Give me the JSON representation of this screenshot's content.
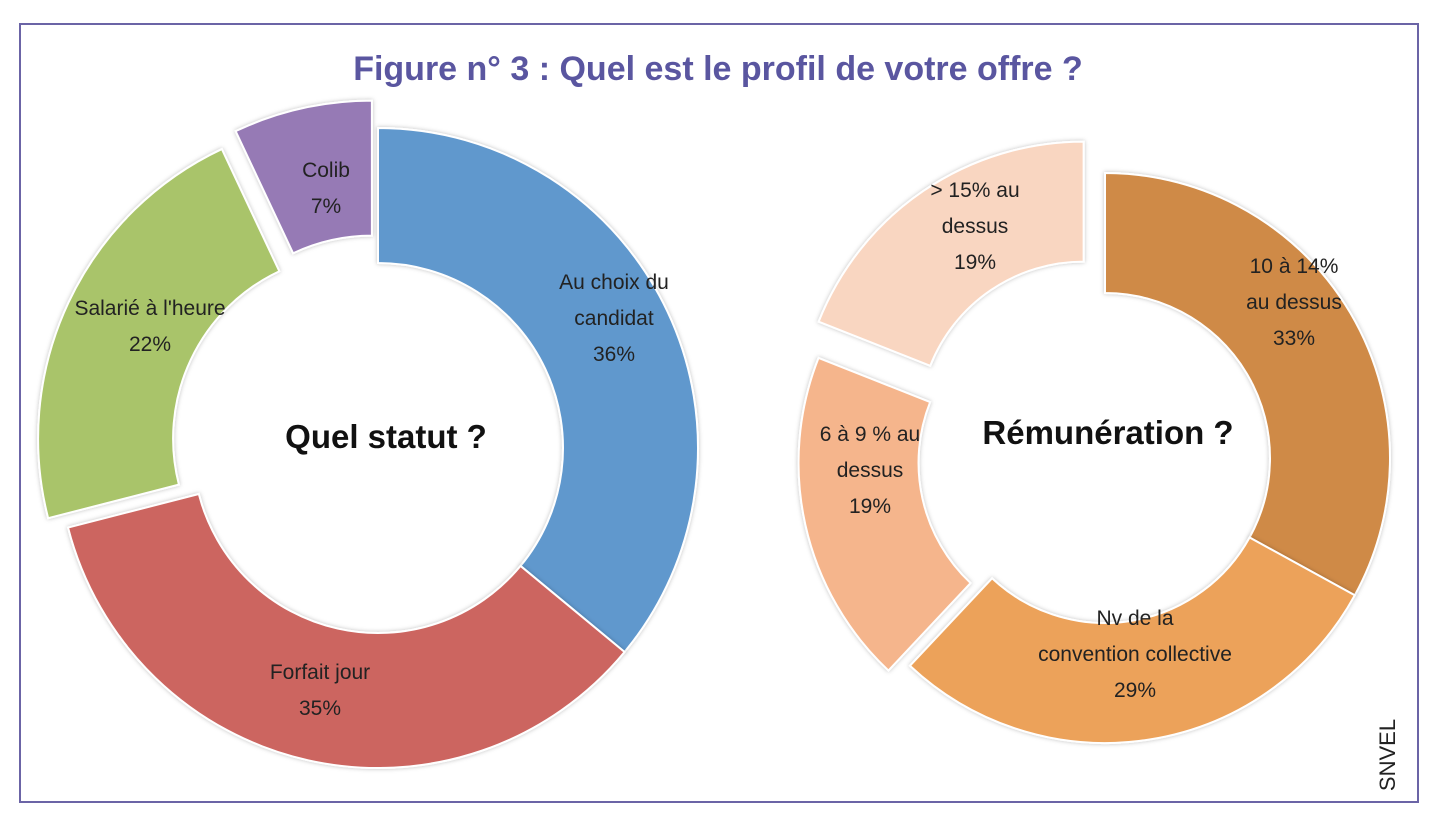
{
  "figure": {
    "title": "Figure n° 3 : Quel est le profil de votre offre ?",
    "source": "SNVEL"
  },
  "chart_data": [
    {
      "type": "pie",
      "center_label": "Quel statut ?",
      "slices": [
        {
          "label": [
            "Au choix du",
            "candidat"
          ],
          "percent_label": "36%",
          "value": 36,
          "color": "#6198cd"
        },
        {
          "label": [
            "Forfait jour"
          ],
          "percent_label": "35%",
          "value": 35,
          "color": "#cc6560"
        },
        {
          "label": [
            "Salarié à l'heure"
          ],
          "percent_label": "22%",
          "value": 22,
          "color": "#a9c46b"
        },
        {
          "label": [
            "Colib"
          ],
          "percent_label": "7%",
          "value": 7,
          "color": "#967ab5"
        }
      ]
    },
    {
      "type": "pie",
      "center_label": "Rémunération ?",
      "slices": [
        {
          "label": [
            "10 à 14%",
            "au dessus"
          ],
          "percent_label": "33%",
          "value": 33,
          "color": "#cf8a46"
        },
        {
          "label": [
            "Nv de la",
            "convention collective"
          ],
          "percent_label": "29%",
          "value": 29,
          "color": "#eca25a"
        },
        {
          "label": [
            "6 à 9 % au",
            "dessus"
          ],
          "percent_label": "19%",
          "value": 19,
          "color": "#f5b58c"
        },
        {
          "label": [
            "> 15% au",
            "dessus"
          ],
          "percent_label": "19%",
          "value": 19,
          "color": "#f9d6c1"
        }
      ]
    }
  ]
}
